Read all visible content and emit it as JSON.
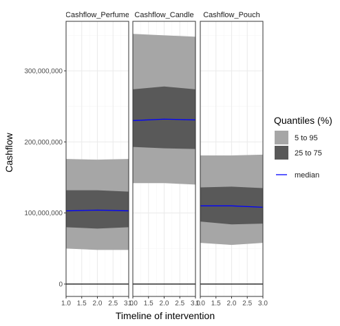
{
  "chart_data": {
    "type": "area",
    "xlabel": "Timeline of intervention",
    "ylabel": "Cashflow",
    "xlim": [
      1.0,
      3.0
    ],
    "ylim": [
      -15000000,
      370000000
    ],
    "x_ticks": [
      1.0,
      1.5,
      2.0,
      2.5,
      3.0
    ],
    "x_tick_labels": [
      "1.0",
      "1.5",
      "2.0",
      "2.5",
      "3.0"
    ],
    "y_ticks": [
      0,
      100000000,
      200000000,
      300000000
    ],
    "y_tick_labels": [
      "0",
      "100,000,000",
      "200,000,000",
      "300,000,000"
    ],
    "grid": true,
    "legend": {
      "title": "Quantiles (%)",
      "position": "right",
      "items": [
        {
          "label": "5 to 95",
          "color": "#a6a6a6",
          "kind": "fill"
        },
        {
          "label": "25 to 75",
          "color": "#595959",
          "kind": "fill"
        },
        {
          "label": "median",
          "color": "#0000ff",
          "kind": "line"
        }
      ]
    },
    "reference_line": {
      "y": 0,
      "color": "#000000"
    },
    "x": [
      1.0,
      2.0,
      3.0
    ],
    "panels": [
      {
        "name": "Cashflow_Perfume",
        "q5": [
          50000000,
          48000000,
          48000000
        ],
        "q25": [
          80000000,
          78000000,
          80000000
        ],
        "median": [
          103000000,
          104000000,
          103000000
        ],
        "q75": [
          132000000,
          132000000,
          130000000
        ],
        "q95": [
          176000000,
          175000000,
          176000000
        ]
      },
      {
        "name": "Cashflow_Candle",
        "q5": [
          142000000,
          142000000,
          140000000
        ],
        "q25": [
          193000000,
          191000000,
          190000000
        ],
        "median": [
          230000000,
          232000000,
          231000000
        ],
        "q75": [
          274000000,
          278000000,
          274000000
        ],
        "q95": [
          352000000,
          350000000,
          348000000
        ]
      },
      {
        "name": "Cashflow_Pouch",
        "q5": [
          58000000,
          55000000,
          58000000
        ],
        "q25": [
          88000000,
          84000000,
          85000000
        ],
        "median": [
          110000000,
          110000000,
          108000000
        ],
        "q75": [
          136000000,
          137000000,
          135000000
        ],
        "q95": [
          181000000,
          181000000,
          182000000
        ]
      }
    ]
  },
  "colors": {
    "band_outer": "#a6a6a6",
    "band_inner": "#595959",
    "median": "#0000ff",
    "panel_border": "#333333",
    "grid_major": "#ebebeb",
    "grid_minor": "#f5f5f5",
    "strip_bg": "#ffffff"
  }
}
